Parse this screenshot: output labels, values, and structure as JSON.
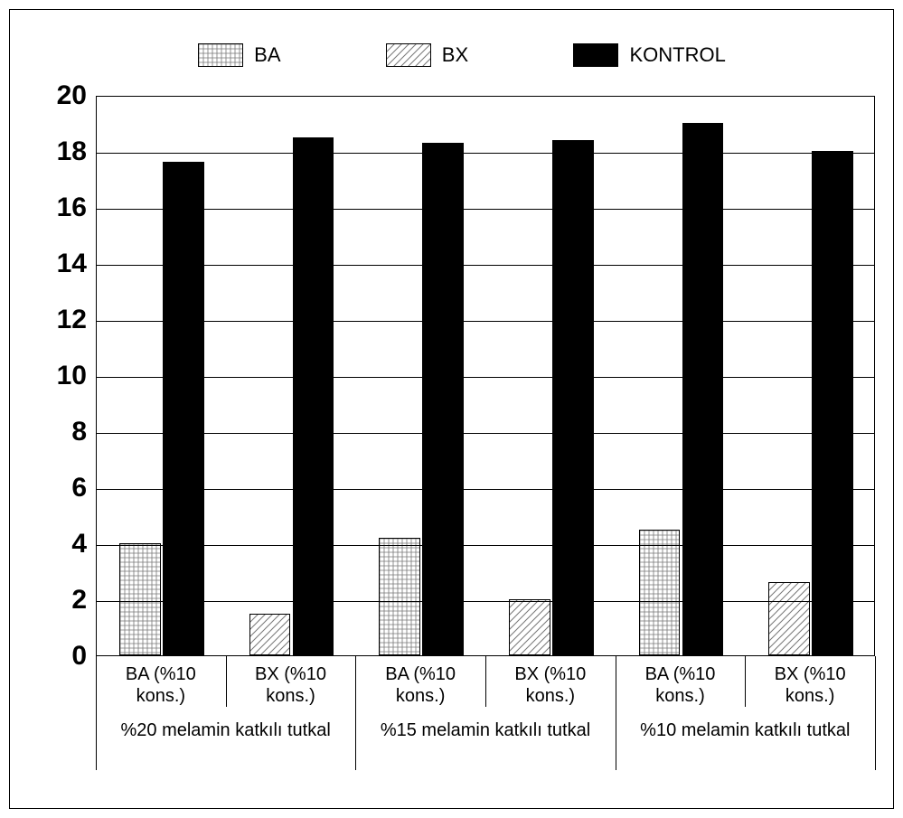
{
  "chart": {
    "type": "grouped-bar",
    "background_color": "#ffffff",
    "border_color": "#000000",
    "grid_color": "#000000",
    "label_fontsize": 20,
    "tick_fontsize": 30,
    "ylim": [
      0,
      20
    ],
    "ytick_step": 2,
    "y_ticks": [
      0,
      2,
      4,
      6,
      8,
      10,
      12,
      14,
      16,
      18,
      20
    ],
    "legend": {
      "items": [
        {
          "key": "BA",
          "label": "BA",
          "fill": "grid"
        },
        {
          "key": "BX",
          "label": "BX",
          "fill": "diag"
        },
        {
          "key": "KONTROL",
          "label": "KONTROL",
          "fill": "solid"
        }
      ]
    },
    "series_styles": {
      "BA": {
        "fill": "grid",
        "border": "#000000"
      },
      "BX": {
        "fill": "diag",
        "border": "#000000"
      },
      "KONTROL": {
        "fill": "solid",
        "color": "#000000",
        "border": "#000000"
      }
    },
    "bar_width": 0.32,
    "groups": [
      {
        "label": "%20 melamin katkılı tutkal",
        "subgroups": [
          {
            "label_line1": "BA (%10",
            "label_line2": "kons.)",
            "bars": [
              {
                "series": "BA",
                "value": 4.0
              },
              {
                "series": "KONTROL",
                "value": 17.6
              }
            ]
          },
          {
            "label_line1": "BX (%10",
            "label_line2": "kons.)",
            "bars": [
              {
                "series": "BX",
                "value": 1.5
              },
              {
                "series": "KONTROL",
                "value": 18.5
              }
            ]
          }
        ]
      },
      {
        "label": "%15 melamin katkılı tutkal",
        "subgroups": [
          {
            "label_line1": "BA (%10",
            "label_line2": "kons.)",
            "bars": [
              {
                "series": "BA",
                "value": 4.2
              },
              {
                "series": "KONTROL",
                "value": 18.3
              }
            ]
          },
          {
            "label_line1": "BX (%10",
            "label_line2": "kons.)",
            "bars": [
              {
                "series": "BX",
                "value": 2.0
              },
              {
                "series": "KONTROL",
                "value": 18.4
              }
            ]
          }
        ]
      },
      {
        "label": "%10 melamin katkılı tutkal",
        "subgroups": [
          {
            "label_line1": "BA (%10",
            "label_line2": "kons.)",
            "bars": [
              {
                "series": "BA",
                "value": 4.5
              },
              {
                "series": "KONTROL",
                "value": 19.0
              }
            ]
          },
          {
            "label_line1": "BX (%10",
            "label_line2": "kons.)",
            "bars": [
              {
                "series": "BX",
                "value": 2.6
              },
              {
                "series": "KONTROL",
                "value": 18.0
              }
            ]
          }
        ]
      }
    ]
  }
}
